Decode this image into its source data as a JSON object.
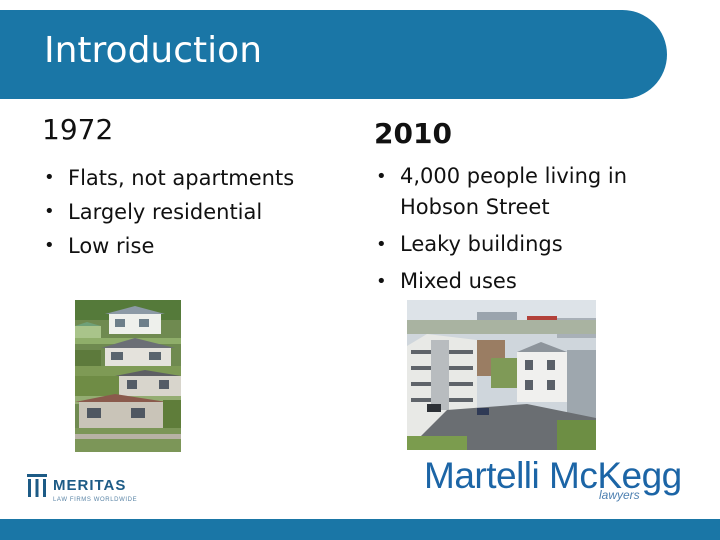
{
  "slide": {
    "title": "Introduction"
  },
  "left_column": {
    "heading": "1972",
    "bullets": [
      "Flats, not apartments",
      "Largely residential",
      "Low rise"
    ]
  },
  "right_column": {
    "heading": "2010",
    "bullets": [
      "4,000 people living in Hobson Street",
      "Leaky buildings",
      "Mixed uses"
    ]
  },
  "logos": {
    "meritas": {
      "name": "MERITAS",
      "tagline": "LAW FIRMS WORLDWIDE"
    },
    "martelli": {
      "name": "Martelli McKegg",
      "subtitle": "lawyers"
    }
  },
  "colors": {
    "accent": "#1a76a6",
    "logo_blue": "#1c65a6"
  }
}
